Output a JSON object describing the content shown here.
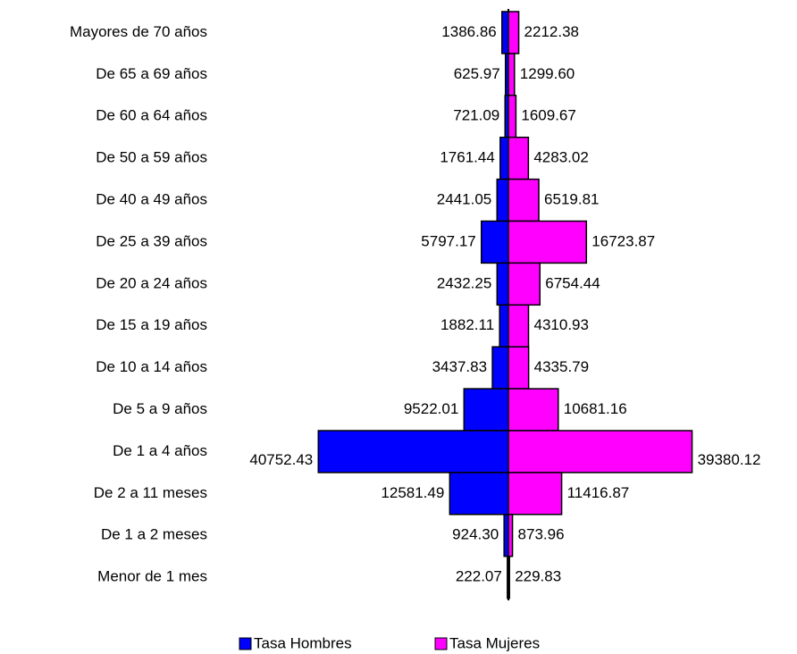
{
  "chart_data": {
    "type": "pyramid",
    "categories": [
      "Mayores de 70 años",
      "De 65 a 69 años",
      "De 60 a 64 años",
      "De 50 a 59 años",
      "De 40 a 49 años",
      "De 25 a 39 años",
      "De 20 a 24 años",
      "De 15 a 19 años",
      "De 10 a 14 años",
      "De 5 a 9 años",
      "De 1 a 4 años",
      "De 2 a 11 meses",
      "De 1 a 2 meses",
      "Menor de 1 mes"
    ],
    "series": [
      {
        "name": "Tasa Hombres",
        "color": "#0000ff",
        "values": [
          1386.86,
          625.97,
          721.09,
          1761.44,
          2441.05,
          5797.17,
          2432.25,
          1882.11,
          3437.83,
          9522.01,
          40752.43,
          12581.49,
          924.3,
          222.07
        ],
        "value_labels": [
          "1386.86",
          "625.97",
          "721.09",
          "1761.44",
          "2441.05",
          "5797.17",
          "2432.25",
          "1882.11",
          "3437.83",
          "9522.01",
          "40752.43",
          "12581.49",
          "924.30",
          "222.07"
        ]
      },
      {
        "name": "Tasa Mujeres",
        "color": "#ff00ff",
        "values": [
          2212.38,
          1299.6,
          1609.67,
          4283.02,
          6519.81,
          16723.87,
          6754.44,
          4310.93,
          4335.79,
          10681.16,
          39380.12,
          11416.87,
          873.96,
          229.83
        ],
        "value_labels": [
          "2212.38",
          "1299.60",
          "1609.67",
          "4283.02",
          "6519.81",
          "16723.87",
          "6754.44",
          "4310.93",
          "4335.79",
          "10681.16",
          "39380.12",
          "11416.87",
          "873.96",
          "229.83"
        ]
      }
    ]
  }
}
